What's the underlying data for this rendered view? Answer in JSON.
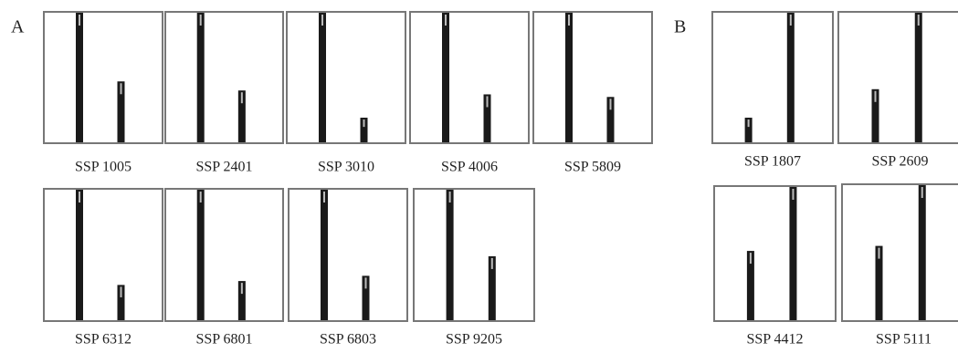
{
  "groups": [
    {
      "label": "A",
      "panels": [
        {
          "name": "SSP 1005",
          "bars": [
            100,
            47
          ]
        },
        {
          "name": "SSP 2401",
          "bars": [
            100,
            40
          ]
        },
        {
          "name": "SSP 3010",
          "bars": [
            100,
            19
          ]
        },
        {
          "name": "SSP 4006",
          "bars": [
            100,
            37
          ]
        },
        {
          "name": "SSP 5809",
          "bars": [
            100,
            35
          ]
        },
        {
          "name": "SSP 6312",
          "bars": [
            100,
            27
          ]
        },
        {
          "name": "SSP 6801",
          "bars": [
            100,
            30
          ]
        },
        {
          "name": "SSP 6803",
          "bars": [
            100,
            34
          ]
        },
        {
          "name": "SSP 9205",
          "bars": [
            100,
            49
          ]
        }
      ]
    },
    {
      "label": "B",
      "panels": [
        {
          "name": "SSP 1807",
          "bars": [
            19,
            100
          ]
        },
        {
          "name": "SSP 2609",
          "bars": [
            41,
            100
          ]
        },
        {
          "name": "SSP 4412",
          "bars": [
            52,
            100
          ]
        },
        {
          "name": "SSP 5111",
          "bars": [
            55,
            100
          ]
        }
      ]
    }
  ]
}
